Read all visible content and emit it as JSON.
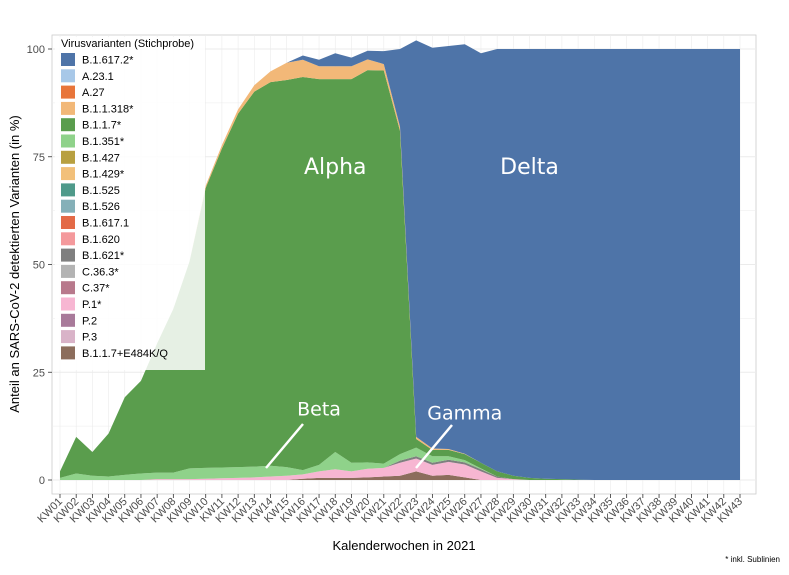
{
  "chart_data": {
    "type": "area",
    "stacked": true,
    "xlabel": "Kalenderwochen in 2021",
    "ylabel": "Anteil an SARS-CoV-2 detektierten Varianten (in %)",
    "ylim": [
      0,
      100
    ],
    "yticks": [
      0,
      25,
      50,
      75,
      100
    ],
    "grid": true,
    "legend_position": "top-left",
    "legend_title": "Virusvarianten (Stichprobe)",
    "footnote": "* inkl. Sublinien",
    "categories": [
      "KW01",
      "KW02",
      "KW03",
      "KW04",
      "KW05",
      "KW06",
      "KW07",
      "KW08",
      "KW09",
      "KW10",
      "KW11",
      "KW12",
      "KW13",
      "KW14",
      "KW15",
      "KW16",
      "KW17",
      "KW18",
      "KW19",
      "KW20",
      "KW21",
      "KW22",
      "KW23",
      "KW24",
      "KW25",
      "KW26",
      "KW27",
      "KW28",
      "KW29",
      "KW30",
      "KW31",
      "KW32",
      "KW33",
      "KW34",
      "KW35",
      "KW36",
      "KW37",
      "KW38",
      "KW39",
      "KW40",
      "KW41",
      "KW42",
      "KW43"
    ],
    "series": [
      {
        "name": "B.1.1.7+E484K/Q",
        "color": "#8c6d5c",
        "values": [
          0,
          0,
          0,
          0,
          0,
          0,
          0,
          0,
          0,
          0,
          0,
          0,
          0,
          0,
          0,
          0.3,
          0.5,
          0.5,
          0.5,
          0.6,
          0.8,
          1.0,
          2.0,
          1.0,
          1.2,
          0.6,
          0,
          0,
          0,
          0,
          0,
          0,
          0,
          0,
          0,
          0,
          0,
          0,
          0,
          0,
          0,
          0,
          0
        ]
      },
      {
        "name": "P.1*",
        "color": "#f7b6d2",
        "values": [
          0,
          0,
          0,
          0,
          0,
          0,
          0.2,
          0.2,
          0.2,
          0.3,
          0.4,
          0.5,
          0.6,
          0.8,
          1.0,
          1.0,
          1.5,
          2.0,
          1.5,
          2.0,
          2.0,
          3.0,
          3.0,
          2.5,
          3.0,
          3.0,
          2.0,
          0.5,
          0.2,
          0,
          0,
          0,
          0,
          0,
          0,
          0,
          0,
          0,
          0,
          0,
          0,
          0,
          0
        ]
      },
      {
        "name": "B.1.621*",
        "color": "#7f7f7f",
        "values": [
          0,
          0,
          0,
          0,
          0,
          0,
          0,
          0,
          0,
          0,
          0,
          0,
          0,
          0,
          0,
          0,
          0,
          0,
          0,
          0,
          0,
          0.5,
          0.5,
          0.5,
          0.5,
          0.5,
          0.5,
          0.3,
          0,
          0,
          0,
          0,
          0,
          0,
          0,
          0,
          0,
          0,
          0,
          0,
          0,
          0,
          0
        ]
      },
      {
        "name": "B.1.351*",
        "color": "#8fd28a",
        "values": [
          0.5,
          1.5,
          1.0,
          0.8,
          1.2,
          1.5,
          1.5,
          1.5,
          2.5,
          2.5,
          2.5,
          2.5,
          2.5,
          2.5,
          2.0,
          1.0,
          1.5,
          4.0,
          2.0,
          1.5,
          1.0,
          1.5,
          2.0,
          1.5,
          0.8,
          0.5,
          0.2,
          0,
          0,
          0,
          0,
          0,
          0,
          0,
          0,
          0,
          0,
          0,
          0,
          0,
          0,
          0,
          0
        ]
      },
      {
        "name": "B.1.1.7*",
        "color": "#5a9d4d",
        "values": [
          1.5,
          8.5,
          5.5,
          10,
          18,
          21.5,
          30,
          38,
          48,
          65,
          74,
          82,
          87,
          89,
          89.8,
          91.2,
          89.5,
          86.5,
          89,
          91,
          91.2,
          75,
          2,
          1.5,
          1.5,
          1.4,
          1.3,
          1.2,
          0.8,
          0.5,
          0.3,
          0.2,
          0.1,
          0,
          0,
          0,
          0,
          0,
          0,
          0,
          0,
          0,
          0
        ]
      },
      {
        "name": "B.1.1.318*",
        "color": "#f2b878",
        "values": [
          0,
          0,
          0,
          0,
          0,
          0,
          0,
          0,
          0,
          0.5,
          0.8,
          1.0,
          1.5,
          2.5,
          4.0,
          4.0,
          3.0,
          3.0,
          3.0,
          2.5,
          1.5,
          1.0,
          0.5,
          0.3,
          0.2,
          0.1,
          0,
          0,
          0,
          0,
          0,
          0,
          0,
          0,
          0,
          0,
          0,
          0,
          0,
          0,
          0,
          0,
          0
        ]
      },
      {
        "name": "B.1.617.2*",
        "color": "#4e74a8",
        "values": [
          0,
          0,
          0,
          0,
          0,
          0,
          0,
          0,
          0,
          0,
          0,
          0,
          0,
          0,
          0,
          1.0,
          1.5,
          3.0,
          2.0,
          2.0,
          3.0,
          18.0,
          92.0,
          93.0,
          93.5,
          95.0,
          95.0,
          98.0,
          99.0,
          99.5,
          99.7,
          99.8,
          99.9,
          100,
          100,
          100,
          100,
          100,
          100,
          100,
          100,
          100,
          100
        ]
      }
    ],
    "legend": [
      {
        "label": "B.1.617.2*",
        "color": "#4e74a8"
      },
      {
        "label": "A.23.1",
        "color": "#a8c8e8"
      },
      {
        "label": "A.27",
        "color": "#e8753a"
      },
      {
        "label": "B.1.1.318*",
        "color": "#f2b878"
      },
      {
        "label": "B.1.1.7*",
        "color": "#5a9d4d"
      },
      {
        "label": "B.1.351*",
        "color": "#8fd28a"
      },
      {
        "label": "B.1.427",
        "color": "#b8a040"
      },
      {
        "label": "B.1.429*",
        "color": "#f2c07a"
      },
      {
        "label": "B.1.525",
        "color": "#4f9a8a"
      },
      {
        "label": "B.1.526",
        "color": "#85b0b8"
      },
      {
        "label": "B.1.617.1",
        "color": "#e36a47"
      },
      {
        "label": "B.1.620",
        "color": "#f4999c"
      },
      {
        "label": "B.1.621*",
        "color": "#7f7f7f"
      },
      {
        "label": "C.36.3*",
        "color": "#b3b3b3"
      },
      {
        "label": "C.37*",
        "color": "#b8798c"
      },
      {
        "label": "P.1*",
        "color": "#f7b6d2"
      },
      {
        "label": "P.2",
        "color": "#a87a9a"
      },
      {
        "label": "P.3",
        "color": "#d9b3c8"
      },
      {
        "label": "B.1.1.7+E484K/Q",
        "color": "#8c6d5c"
      }
    ],
    "annotations": [
      {
        "text": "Alpha",
        "x": "KW18",
        "y": 71,
        "size": "large"
      },
      {
        "text": "Delta",
        "x": "KW30",
        "y": 71,
        "size": "large"
      },
      {
        "text": "Beta",
        "x": "KW17",
        "y": 15,
        "size": "medium"
      },
      {
        "text": "Gamma",
        "x": "KW26",
        "y": 14,
        "size": "medium"
      }
    ]
  }
}
